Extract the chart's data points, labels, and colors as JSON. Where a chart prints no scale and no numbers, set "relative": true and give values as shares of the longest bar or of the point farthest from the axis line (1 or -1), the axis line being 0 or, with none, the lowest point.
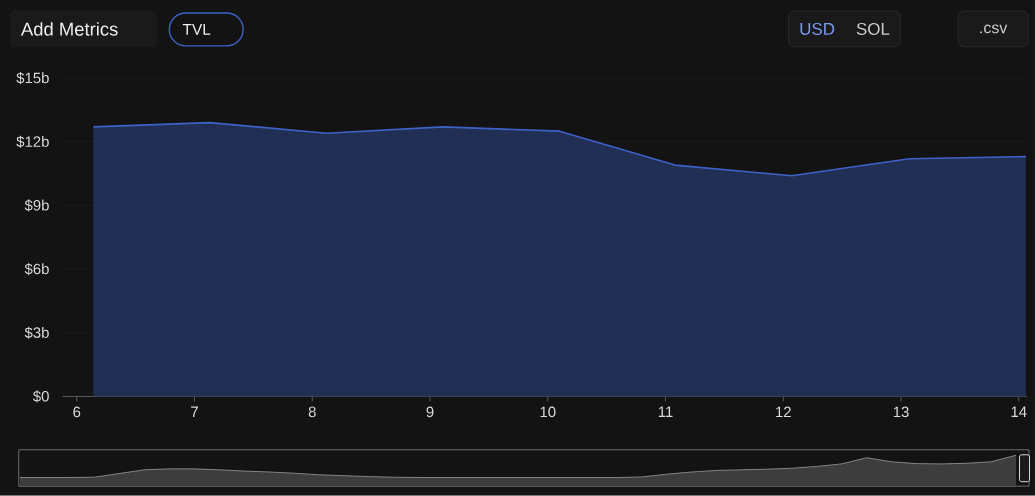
{
  "chart_data": [
    {
      "type": "area",
      "annotations": [
        "Add Metrics",
        "USD",
        "SOL",
        ".csv"
      ],
      "x": [
        6.14,
        7.13,
        8.12,
        9.11,
        10.1,
        11.08,
        12.07,
        13.07,
        14.06
      ],
      "series": [
        {
          "name": "TVL",
          "color": "#3d62c8",
          "values": [
            12.7,
            12.9,
            12.4,
            12.7,
            12.5,
            10.9,
            10.4,
            11.2,
            11.3
          ]
        }
      ],
      "xlim": [
        5.88,
        14.07
      ],
      "ylim": [
        0,
        15
      ],
      "xticks": [
        6,
        7,
        8,
        9,
        10,
        11,
        12,
        13,
        14
      ],
      "yticks": [
        {
          "value": 0,
          "label": "$0"
        },
        {
          "value": 3,
          "label": "$3b"
        },
        {
          "value": 6,
          "label": "$6b"
        },
        {
          "value": 9,
          "label": "$9b"
        },
        {
          "value": 12,
          "label": "$12b"
        },
        {
          "value": 15,
          "label": "$15b"
        }
      ],
      "grid": "y",
      "legend": "top left"
    },
    {
      "type": "area",
      "relative": true,
      "color": "#8e8e92",
      "categories": [
        null,
        null,
        null,
        null,
        null,
        null,
        null,
        null,
        null,
        null,
        null,
        null,
        null,
        null,
        null,
        null,
        null,
        null,
        null,
        null,
        null,
        null,
        null,
        null,
        null,
        null,
        null,
        null,
        null,
        null,
        null,
        null,
        null,
        null,
        null,
        null,
        null,
        null,
        null,
        null,
        null
      ],
      "values": [
        0.28,
        0.28,
        0.28,
        0.29,
        0.41,
        0.53,
        0.56,
        0.56,
        0.53,
        0.49,
        0.46,
        0.42,
        0.37,
        0.34,
        0.31,
        0.29,
        0.28,
        0.28,
        0.28,
        0.28,
        0.28,
        0.28,
        0.28,
        0.28,
        0.28,
        0.3,
        0.39,
        0.46,
        0.51,
        0.53,
        0.55,
        0.58,
        0.64,
        0.72,
        0.92,
        0.79,
        0.73,
        0.72,
        0.74,
        0.79,
        1.0
      ]
    }
  ]
}
